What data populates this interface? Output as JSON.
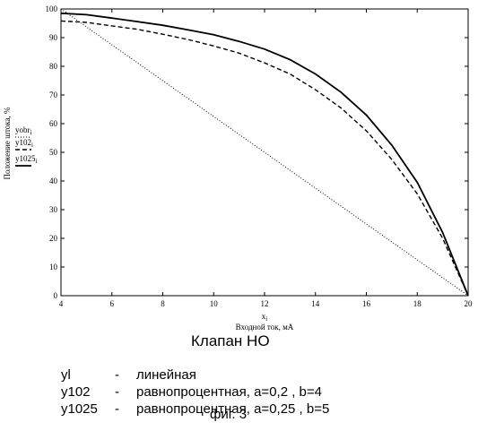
{
  "chart_data": {
    "type": "line",
    "xlabel_symbol": "x",
    "xlabel_symbol_sub": "i",
    "xlabel": "Входной ток, мА",
    "ylabel": "Положение штока, %",
    "xlim": [
      4,
      20
    ],
    "ylim": [
      0,
      100
    ],
    "xticks": [
      "4",
      "6",
      "8",
      "10",
      "12",
      "14",
      "16",
      "18",
      "20"
    ],
    "yticks": [
      "0",
      "10",
      "20",
      "30",
      "40",
      "50",
      "60",
      "70",
      "80",
      "90",
      "100"
    ],
    "grid": false,
    "legend_position": "left",
    "series": [
      {
        "name": "yobr",
        "name_sub": "i",
        "style": "dotted",
        "x": [
          4,
          20
        ],
        "y": [
          100,
          0
        ]
      },
      {
        "name": "y102",
        "name_sub": "i",
        "style": "dashed",
        "x": [
          4,
          5,
          6,
          7,
          8,
          9,
          10,
          11,
          12,
          13,
          14,
          15,
          16,
          17,
          18,
          19,
          20
        ],
        "y": [
          95.8,
          95.3,
          94.1,
          92.9,
          91.2,
          89.3,
          87.1,
          84.6,
          81.2,
          77.3,
          71.8,
          65.5,
          57.5,
          47.5,
          35.5,
          20.0,
          0
        ]
      },
      {
        "name": "y1025",
        "name_sub": "i",
        "style": "solid",
        "x": [
          4,
          5,
          6,
          7,
          8,
          9,
          10,
          11,
          12,
          13,
          14,
          15,
          16,
          17,
          18,
          19,
          20
        ],
        "y": [
          98.5,
          98.0,
          96.8,
          95.6,
          94.3,
          92.7,
          91.0,
          88.7,
          86.0,
          82.3,
          77.3,
          71.0,
          63.0,
          52.5,
          39.5,
          22.0,
          0
        ]
      }
    ]
  },
  "chart_title": "Клапан НО",
  "legend_text": [
    {
      "name": "yl",
      "dash": "-",
      "desc": "линейная"
    },
    {
      "name": "y102",
      "dash": "-",
      "desc": "равнопроцентная, a=0,2 , b=4"
    },
    {
      "name": "y1025",
      "dash": "-",
      "desc": "равнопроцентная, a=0,25 , b=5"
    }
  ],
  "figure_caption": "фиг. 3"
}
